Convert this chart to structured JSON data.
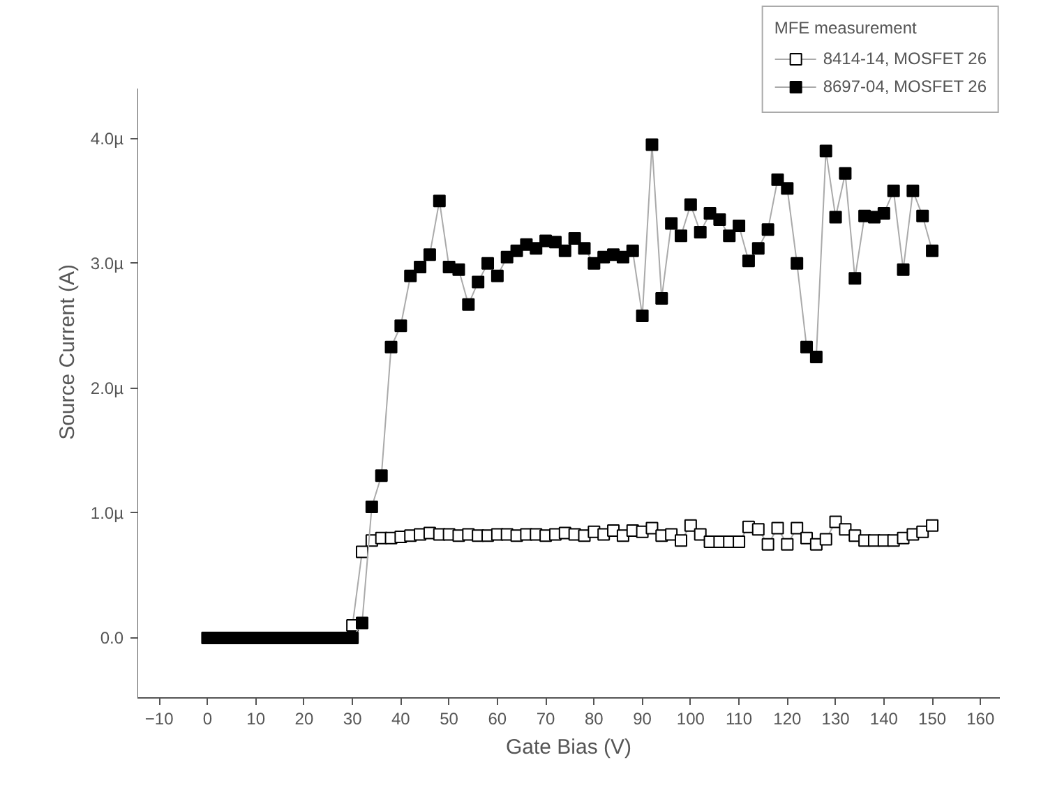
{
  "chart_data": {
    "type": "line",
    "xlabel": "Gate Bias (V)",
    "ylabel": "Source Current (A)",
    "legend_title": "MFE measurement",
    "legend": "top right",
    "grid": false,
    "marker": "square",
    "line_style": "solid",
    "xlim": [
      -14.5,
      164
    ],
    "xticks": [
      -10,
      0,
      10,
      20,
      30,
      40,
      50,
      60,
      70,
      80,
      90,
      100,
      110,
      120,
      130,
      140,
      150,
      160
    ],
    "ylim": [
      -0.48,
      4.4
    ],
    "yticks": [
      {
        "value": 0,
        "label": "0.0"
      },
      {
        "value": 1,
        "label": "1.0µ"
      },
      {
        "value": 2,
        "label": "2.0µ"
      },
      {
        "value": 3,
        "label": "3.0µ"
      },
      {
        "value": 4,
        "label": "4.0µ"
      }
    ],
    "series": [
      {
        "name": "8414-14, MOSFET 26",
        "color": "#ffffff",
        "x": [
          30,
          32,
          34,
          36,
          38,
          40,
          42,
          44,
          46,
          48,
          50,
          52,
          54,
          56,
          58,
          60,
          62,
          64,
          66,
          68,
          70,
          72,
          74,
          76,
          78,
          80,
          82,
          84,
          86,
          88,
          90,
          92,
          94,
          96,
          98,
          100,
          102,
          104,
          106,
          108,
          110,
          112,
          114,
          116,
          118,
          120,
          122,
          124,
          126,
          128,
          130,
          132,
          134,
          136,
          138,
          140,
          142,
          144,
          146,
          148,
          150
        ],
        "values": [
          0.1,
          0.69,
          0.78,
          0.8,
          0.8,
          0.81,
          0.82,
          0.83,
          0.84,
          0.83,
          0.83,
          0.82,
          0.83,
          0.82,
          0.82,
          0.83,
          0.83,
          0.82,
          0.83,
          0.83,
          0.82,
          0.83,
          0.84,
          0.83,
          0.82,
          0.85,
          0.83,
          0.86,
          0.82,
          0.86,
          0.85,
          0.88,
          0.82,
          0.83,
          0.78,
          0.9,
          0.83,
          0.77,
          0.77,
          0.77,
          0.77,
          0.89,
          0.87,
          0.75,
          0.88,
          0.75,
          0.88,
          0.8,
          0.75,
          0.79,
          0.93,
          0.87,
          0.82,
          0.78,
          0.78,
          0.78,
          0.78,
          0.8,
          0.83,
          0.85,
          0.9
        ]
      },
      {
        "name": "8697-04, MOSFET 26",
        "color": "#000000",
        "x": [
          0,
          1,
          2,
          3,
          4,
          5,
          6,
          7,
          8,
          9,
          10,
          11,
          12,
          13,
          14,
          15,
          16,
          17,
          18,
          19,
          20,
          21,
          22,
          23,
          24,
          25,
          26,
          27,
          28,
          29,
          30,
          32,
          34,
          36,
          38,
          40,
          42,
          44,
          46,
          48,
          50,
          52,
          54,
          56,
          58,
          60,
          62,
          64,
          66,
          68,
          70,
          72,
          74,
          76,
          78,
          80,
          82,
          84,
          86,
          88,
          90,
          92,
          94,
          96,
          98,
          100,
          102,
          104,
          106,
          108,
          110,
          112,
          114,
          116,
          118,
          120,
          122,
          124,
          126,
          128,
          130,
          132,
          134,
          136,
          138,
          140,
          142,
          144,
          146,
          148,
          150
        ],
        "values": [
          0,
          0,
          0,
          0,
          0,
          0,
          0,
          0,
          0,
          0,
          0,
          0,
          0,
          0,
          0,
          0,
          0,
          0,
          0,
          0,
          0,
          0,
          0,
          0,
          0,
          0,
          0,
          0,
          0,
          0,
          0,
          0.12,
          1.05,
          1.3,
          2.33,
          2.5,
          2.9,
          2.97,
          3.07,
          3.5,
          2.97,
          2.95,
          2.67,
          2.85,
          3,
          2.9,
          3.05,
          3.1,
          3.15,
          3.12,
          3.18,
          3.17,
          3.1,
          3.2,
          3.12,
          3,
          3.05,
          3.07,
          3.05,
          3.1,
          2.58,
          3.95,
          2.72,
          3.32,
          3.22,
          3.47,
          3.25,
          3.4,
          3.35,
          3.22,
          3.3,
          3.02,
          3.12,
          3.27,
          3.67,
          3.6,
          3,
          2.33,
          2.25,
          3.9,
          3.37,
          3.72,
          2.88,
          3.38,
          3.37,
          3.4,
          3.58,
          2.95,
          3.58,
          3.38,
          3.1
        ]
      }
    ]
  }
}
